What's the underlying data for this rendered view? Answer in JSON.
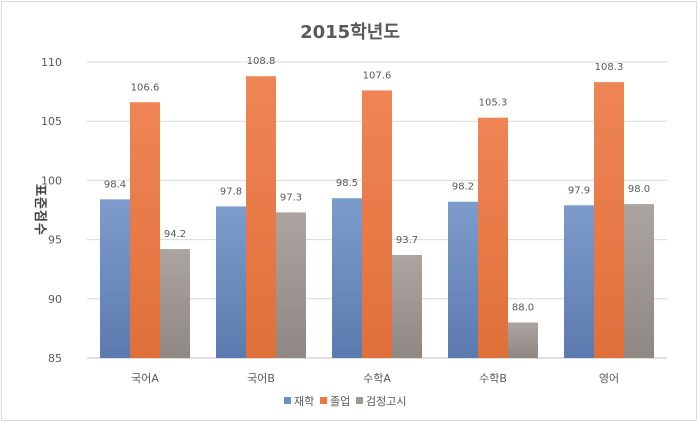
{
  "chart_data": {
    "type": "bar",
    "title": "2015학년도",
    "ylabel": "표준점수",
    "xlabel": "",
    "ylim": [
      85,
      110
    ],
    "yticks": [
      85,
      90,
      95,
      100,
      105,
      110
    ],
    "categories": [
      "국어A",
      "국어B",
      "수학A",
      "수학B",
      "영어"
    ],
    "series": [
      {
        "name": "재학",
        "color": "#7090c0",
        "values": [
          98.4,
          97.8,
          98.5,
          98.2,
          97.9
        ]
      },
      {
        "name": "졸업",
        "color": "#ed7a45",
        "values": [
          106.6,
          108.8,
          107.6,
          105.3,
          108.3
        ]
      },
      {
        "name": "검정고시",
        "color": "#a09894",
        "values": [
          94.2,
          97.3,
          93.7,
          88.0,
          98.0
        ]
      }
    ],
    "data_label_format": "one_decimal",
    "grid": true,
    "legend": "bottom"
  }
}
